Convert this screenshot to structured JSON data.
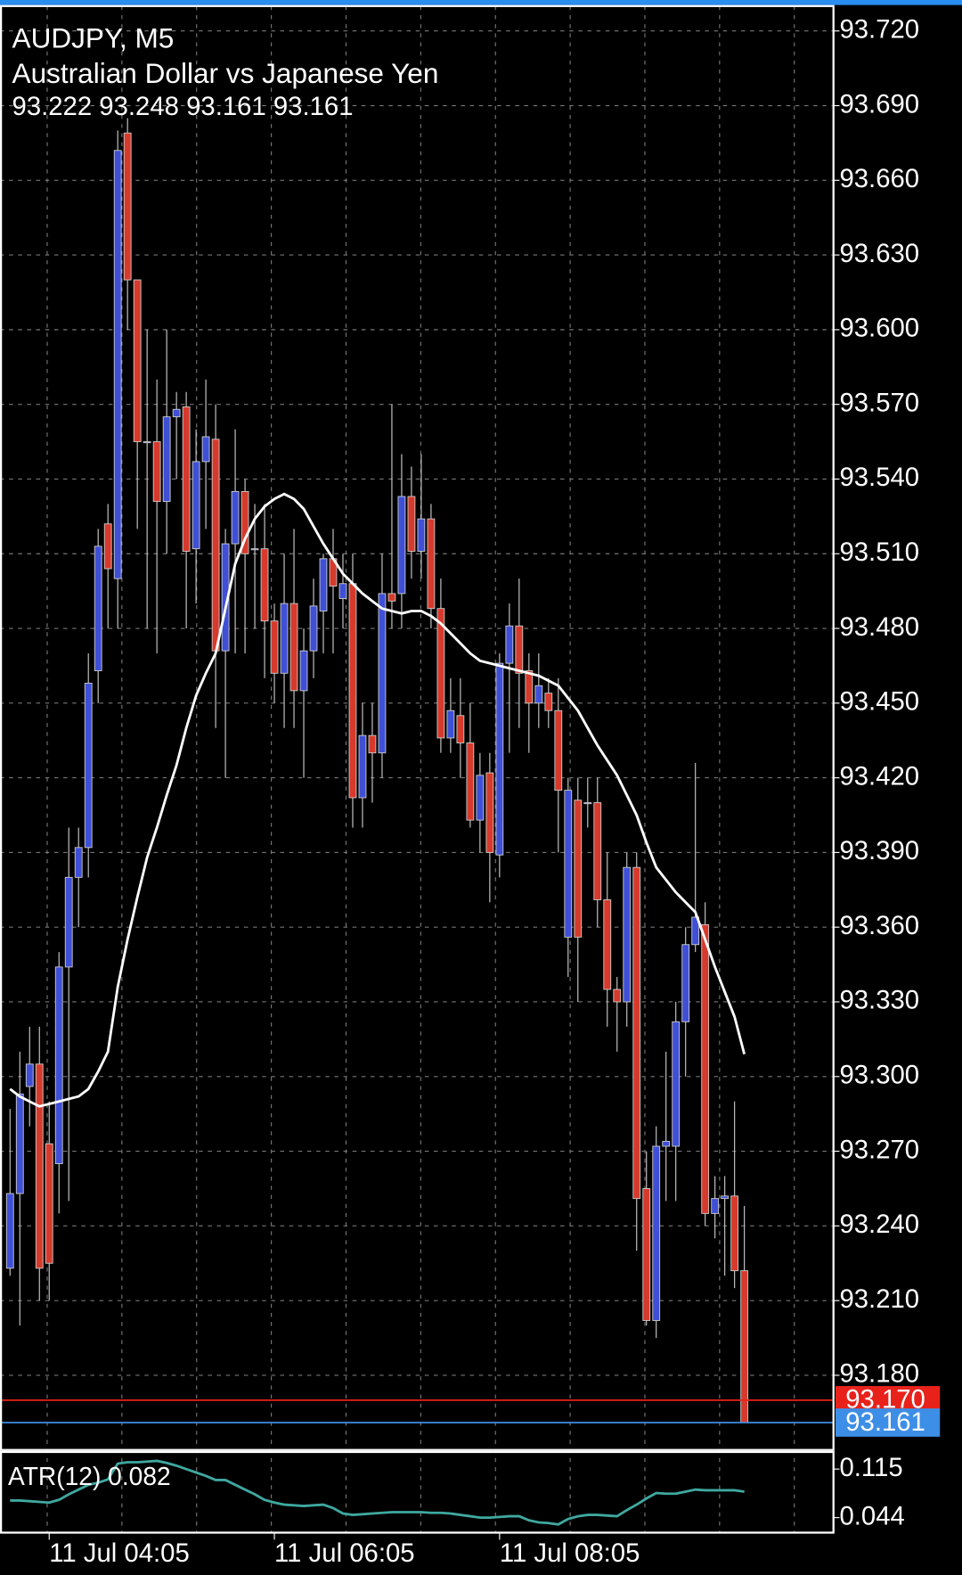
{
  "chart_data": [
    {
      "type": "candlestick",
      "title": "AUDJPY, M5",
      "subtitle": "Australian Dollar vs Japanese Yen",
      "ohlc_text": "93.222 93.248 93.161 93.161",
      "categories": [
        null,
        null,
        null,
        null,
        "11 Jul 04:05",
        null,
        null,
        null,
        null,
        null,
        null,
        null,
        null,
        null,
        null,
        null,
        null,
        null,
        null,
        null,
        null,
        null,
        null,
        null,
        null,
        null,
        null,
        "11 Jul 06:05",
        null,
        null,
        null,
        null,
        null,
        null,
        null,
        null,
        null,
        null,
        null,
        null,
        null,
        null,
        null,
        null,
        null,
        null,
        null,
        null,
        null,
        null,
        "11 Jul 08:05",
        null,
        null,
        null,
        null,
        null,
        null,
        null,
        null,
        null,
        null,
        null,
        null,
        null,
        null,
        null,
        null,
        null,
        null,
        null,
        null,
        null,
        null,
        null,
        null,
        null
      ],
      "open": [
        93.223,
        93.253,
        93.296,
        93.305,
        93.273,
        93.265,
        93.344,
        93.38,
        93.392,
        93.463,
        93.522,
        93.5,
        93.679,
        93.62,
        93.555,
        93.555,
        93.531,
        93.565,
        93.569,
        93.512,
        93.547,
        93.556,
        93.471,
        93.514,
        93.535,
        93.512,
        93.512,
        93.483,
        93.462,
        93.49,
        93.455,
        93.471,
        93.487,
        93.508,
        93.492,
        93.498,
        93.412,
        93.437,
        93.43,
        93.494,
        93.494,
        93.533,
        93.511,
        93.524,
        93.488,
        93.436,
        93.445,
        93.434,
        93.403,
        93.422,
        93.389,
        93.466,
        93.481,
        93.463,
        93.45,
        93.454,
        93.447,
        93.356,
        93.411,
        93.41,
        93.41,
        93.371,
        93.335,
        93.33,
        93.384,
        93.255,
        93.202,
        93.272,
        93.272,
        93.322,
        93.353,
        93.361,
        93.245,
        93.251,
        93.252,
        93.222
      ],
      "high": [
        93.287,
        93.31,
        93.32,
        93.32,
        93.29,
        93.35,
        93.4,
        93.4,
        93.47,
        93.52,
        93.53,
        93.68,
        93.685,
        93.62,
        93.6,
        93.58,
        93.6,
        93.575,
        93.575,
        93.56,
        93.58,
        93.57,
        93.52,
        93.56,
        93.54,
        93.53,
        93.53,
        93.49,
        93.51,
        93.52,
        93.48,
        93.5,
        93.51,
        93.52,
        93.51,
        93.51,
        93.45,
        93.45,
        93.51,
        93.57,
        93.55,
        93.545,
        93.55,
        93.53,
        93.5,
        93.46,
        93.46,
        93.45,
        93.43,
        93.43,
        93.47,
        93.49,
        93.5,
        93.47,
        93.47,
        93.46,
        93.46,
        93.42,
        93.42,
        93.42,
        93.42,
        93.39,
        93.34,
        93.39,
        93.39,
        93.27,
        93.28,
        93.31,
        93.33,
        93.36,
        93.426,
        93.37,
        93.26,
        93.26,
        93.29,
        93.248
      ],
      "low": [
        93.22,
        93.2,
        93.28,
        93.21,
        93.21,
        93.245,
        93.25,
        93.36,
        93.38,
        93.45,
        93.48,
        93.48,
        93.6,
        93.52,
        93.48,
        93.47,
        93.51,
        93.54,
        93.48,
        93.49,
        93.52,
        93.44,
        93.42,
        93.47,
        93.47,
        93.48,
        93.46,
        93.45,
        93.44,
        93.44,
        93.42,
        93.46,
        93.47,
        93.47,
        93.48,
        93.4,
        93.4,
        93.41,
        93.42,
        93.48,
        93.48,
        93.5,
        93.5,
        93.48,
        93.43,
        93.43,
        93.42,
        93.4,
        93.39,
        93.37,
        93.38,
        93.43,
        93.44,
        93.43,
        93.44,
        93.44,
        93.39,
        93.34,
        93.33,
        93.4,
        93.36,
        93.32,
        93.31,
        93.32,
        93.23,
        93.2,
        93.195,
        93.25,
        93.25,
        93.3,
        93.35,
        93.24,
        93.235,
        93.22,
        93.215,
        93.161
      ],
      "close": [
        93.253,
        93.293,
        93.305,
        93.223,
        93.225,
        93.344,
        93.38,
        93.392,
        93.458,
        93.513,
        93.504,
        93.672,
        93.62,
        93.555,
        93.555,
        93.531,
        93.565,
        93.568,
        93.511,
        93.547,
        93.557,
        93.471,
        93.514,
        93.535,
        93.51,
        93.512,
        93.483,
        93.462,
        93.49,
        93.455,
        93.471,
        93.489,
        93.508,
        93.497,
        93.498,
        93.412,
        93.437,
        93.43,
        93.494,
        93.491,
        93.533,
        93.511,
        93.524,
        93.488,
        93.436,
        93.447,
        93.434,
        93.403,
        93.421,
        93.39,
        93.466,
        93.481,
        93.462,
        93.45,
        93.457,
        93.447,
        93.415,
        93.415,
        93.356,
        93.41,
        93.371,
        93.335,
        93.33,
        93.384,
        93.251,
        93.202,
        93.272,
        93.274,
        93.322,
        93.353,
        93.364,
        93.245,
        93.251,
        93.252,
        93.222,
        93.161
      ],
      "up_color": "#3f4fd6",
      "down_color": "#d63a2c",
      "ma": {
        "color": "#ffffff",
        "values": [
          93.295,
          93.292,
          93.29,
          93.288,
          93.289,
          93.29,
          93.291,
          93.292,
          93.295,
          93.302,
          93.31,
          93.336,
          93.355,
          93.372,
          93.388,
          93.4,
          93.413,
          93.425,
          93.44,
          93.453,
          93.462,
          93.47,
          93.488,
          93.506,
          93.516,
          93.524,
          93.529,
          93.532,
          93.534,
          93.532,
          93.528,
          93.521,
          93.514,
          93.508,
          93.502,
          93.498,
          93.494,
          93.491,
          93.488,
          93.487,
          93.486,
          93.487,
          93.487,
          93.485,
          93.482,
          93.478,
          93.474,
          93.47,
          93.467,
          93.466,
          93.465,
          93.464,
          93.463,
          93.462,
          93.461,
          93.459,
          93.457,
          93.452,
          93.447,
          93.44,
          93.433,
          93.427,
          93.421,
          93.413,
          93.405,
          93.394,
          93.384,
          93.379,
          93.374,
          93.37,
          93.366,
          93.355,
          93.344,
          93.334,
          93.324,
          93.309
        ]
      },
      "price_lines": [
        {
          "value": 93.17,
          "label": "93.170",
          "color": "#e8221b"
        },
        {
          "value": 93.161,
          "label": "93.161",
          "color": "#3d8ee6"
        }
      ],
      "ylim": [
        93.15,
        93.73
      ],
      "yticks": [
        {
          "value": 93.72,
          "label": "93.720"
        },
        {
          "value": 93.69,
          "label": "93.690"
        },
        {
          "value": 93.66,
          "label": "93.660"
        },
        {
          "value": 93.63,
          "label": "93.630"
        },
        {
          "value": 93.6,
          "label": "93.600"
        },
        {
          "value": 93.57,
          "label": "93.570"
        },
        {
          "value": 93.54,
          "label": "93.540"
        },
        {
          "value": 93.51,
          "label": "93.510"
        },
        {
          "value": 93.48,
          "label": "93.480"
        },
        {
          "value": 93.45,
          "label": "93.450"
        },
        {
          "value": 93.42,
          "label": "93.420"
        },
        {
          "value": 93.39,
          "label": "93.390"
        },
        {
          "value": 93.36,
          "label": "93.360"
        },
        {
          "value": 93.33,
          "label": "93.330"
        },
        {
          "value": 93.3,
          "label": "93.300"
        },
        {
          "value": 93.27,
          "label": "93.270"
        },
        {
          "value": 93.24,
          "label": "93.240"
        },
        {
          "value": 93.21,
          "label": "93.210"
        },
        {
          "value": 93.18,
          "label": "93.180"
        }
      ],
      "grid": true
    },
    {
      "type": "line",
      "title": "ATR(12) 0.082",
      "color": "#3fa8a0",
      "values": [
        0.069,
        0.069,
        0.068,
        0.067,
        0.066,
        0.07,
        0.078,
        0.085,
        0.092,
        0.095,
        0.1,
        0.123,
        0.125,
        0.125,
        0.126,
        0.127,
        0.124,
        0.12,
        0.115,
        0.11,
        0.105,
        0.099,
        0.099,
        0.092,
        0.085,
        0.078,
        0.07,
        0.066,
        0.063,
        0.062,
        0.061,
        0.062,
        0.063,
        0.058,
        0.05,
        0.048,
        0.049,
        0.05,
        0.051,
        0.052,
        0.052,
        0.052,
        0.052,
        0.051,
        0.051,
        0.05,
        0.048,
        0.046,
        0.044,
        0.044,
        0.045,
        0.046,
        0.046,
        0.04,
        0.037,
        0.036,
        0.034,
        0.042,
        0.046,
        0.048,
        0.048,
        0.047,
        0.046,
        0.055,
        0.063,
        0.072,
        0.08,
        0.079,
        0.079,
        0.082,
        0.085,
        0.084,
        0.084,
        0.084,
        0.084,
        0.082
      ],
      "ylim": [
        0.022,
        0.14
      ],
      "yticks": [
        0.115,
        0.044
      ]
    }
  ]
}
